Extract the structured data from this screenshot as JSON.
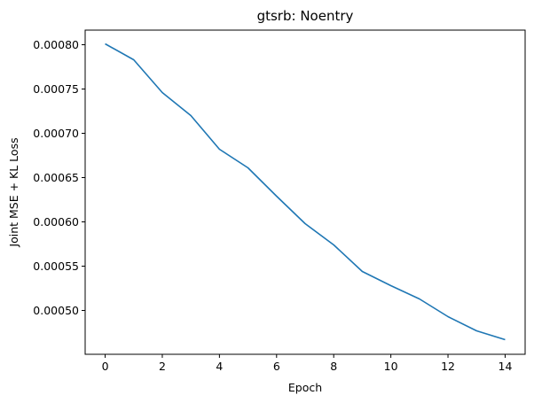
{
  "chart_data": {
    "type": "line",
    "title": "gtsrb: Noentry",
    "xlabel": "Epoch",
    "ylabel": "Joint MSE + KL Loss",
    "xlim": [
      -0.7,
      14.7
    ],
    "ylim": [
      0.0004505,
      0.0008165
    ],
    "xticks": [
      0,
      2,
      4,
      6,
      8,
      10,
      12,
      14
    ],
    "yticks": [
      0.0005,
      0.00055,
      0.0006,
      0.00065,
      0.0007,
      0.00075,
      0.0008
    ],
    "ytick_labels": [
      "0.00050",
      "0.00055",
      "0.00060",
      "0.00065",
      "0.00070",
      "0.00075",
      "0.00080"
    ],
    "grid": false,
    "series": [
      {
        "color": "#1f77b4",
        "x": [
          0,
          1,
          2,
          3,
          4,
          5,
          6,
          7,
          8,
          9,
          10,
          11,
          12,
          13,
          14
        ],
        "y": [
          0.000801,
          0.000783,
          0.000746,
          0.00072,
          0.000682,
          0.000661,
          0.000629,
          0.000598,
          0.000574,
          0.000544,
          0.000528,
          0.000513,
          0.000493,
          0.000477,
          0.000467
        ]
      }
    ]
  }
}
